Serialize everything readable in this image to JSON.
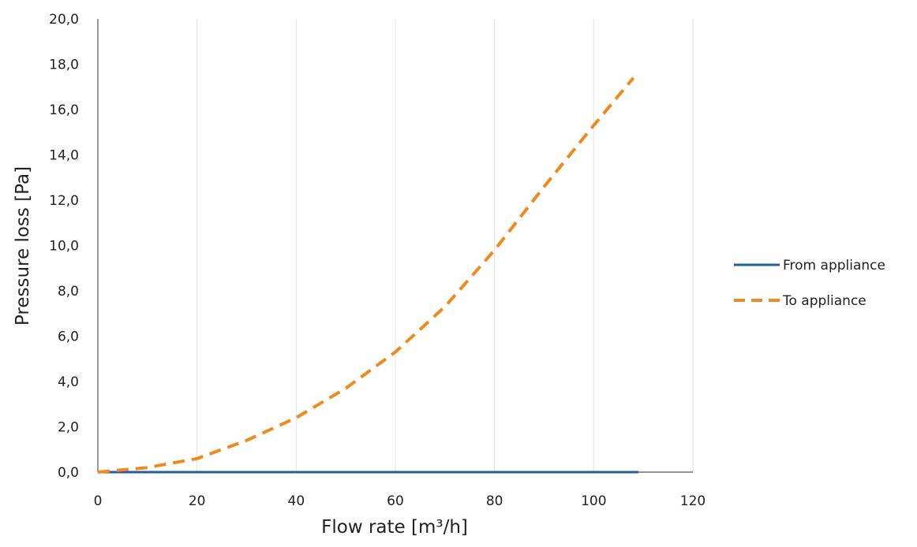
{
  "chart_data": {
    "type": "line",
    "title": "",
    "xlabel": "Flow rate [m³/h]",
    "ylabel": "Pressure loss [Pa]",
    "xlim": [
      0,
      120
    ],
    "ylim": [
      0,
      20
    ],
    "x_ticks": [
      "0",
      "20",
      "40",
      "60",
      "80",
      "100",
      "120"
    ],
    "y_ticks": [
      "0,0",
      "2,0",
      "4,0",
      "6,0",
      "8,0",
      "10,0",
      "12,0",
      "14,0",
      "16,0",
      "18,0",
      "20,0"
    ],
    "grid": "vertical",
    "legend_position": "right",
    "series": [
      {
        "name": "From appliance",
        "color": "#1f5f9e",
        "style": "solid",
        "x": [
          0,
          20,
          40,
          60,
          80,
          100,
          109
        ],
        "y": [
          0,
          0,
          0,
          0,
          0,
          0,
          0
        ]
      },
      {
        "name": "To appliance",
        "color": "#f08a1c",
        "style": "dashed",
        "x": [
          0,
          5,
          10,
          15,
          20,
          30,
          40,
          50,
          60,
          70,
          80,
          90,
          100,
          108
        ],
        "y": [
          0,
          0.1,
          0.2,
          0.4,
          0.6,
          1.4,
          2.4,
          3.7,
          5.3,
          7.3,
          9.8,
          12.6,
          15.3,
          17.4
        ]
      }
    ]
  }
}
